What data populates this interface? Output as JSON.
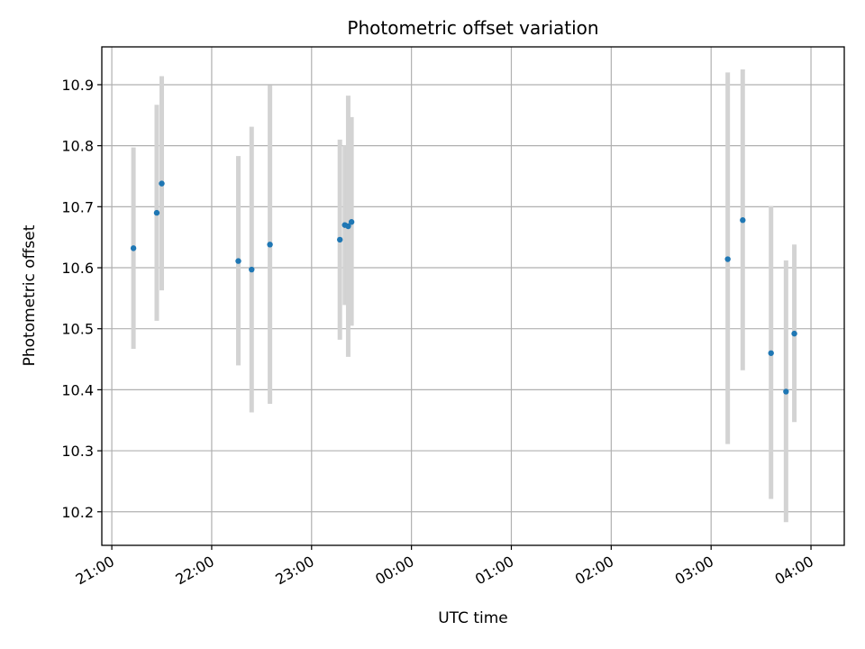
{
  "chart_data": {
    "type": "scatter",
    "title": "Photometric offset variation",
    "xlabel": "UTC time",
    "ylabel": "Photometric offset",
    "grid": true,
    "colors": {
      "points": "#1f77b4",
      "error_bars": "#d3d3d3"
    },
    "x_ticks": [
      {
        "label": "21:00",
        "t": "21:00"
      },
      {
        "label": "22:00",
        "t": "22:00"
      },
      {
        "label": "23:00",
        "t": "23:00"
      },
      {
        "label": "00:00",
        "t": "00:00"
      },
      {
        "label": "01:00",
        "t": "01:00"
      },
      {
        "label": "02:00",
        "t": "02:00"
      },
      {
        "label": "03:00",
        "t": "03:00"
      },
      {
        "label": "04:00",
        "t": "04:00"
      }
    ],
    "xlim": [
      "20:54",
      "04:20"
    ],
    "y_ticks": [
      "10.2",
      "10.3",
      "10.4",
      "10.5",
      "10.6",
      "10.7",
      "10.8",
      "10.9"
    ],
    "ylim": [
      10.145,
      10.962
    ],
    "points": [
      {
        "t": "21:13",
        "y": 10.632,
        "lo": 10.467,
        "hi": 10.797
      },
      {
        "t": "21:27",
        "y": 10.69,
        "lo": 10.513,
        "hi": 10.867
      },
      {
        "t": "21:30",
        "y": 10.738,
        "lo": 10.563,
        "hi": 10.914
      },
      {
        "t": "22:16",
        "y": 10.611,
        "lo": 10.44,
        "hi": 10.783
      },
      {
        "t": "22:24",
        "y": 10.597,
        "lo": 10.363,
        "hi": 10.831
      },
      {
        "t": "22:35",
        "y": 10.638,
        "lo": 10.377,
        "hi": 10.899
      },
      {
        "t": "23:17",
        "y": 10.646,
        "lo": 10.482,
        "hi": 10.81
      },
      {
        "t": "23:20",
        "y": 10.67,
        "lo": 10.539,
        "hi": 10.801
      },
      {
        "t": "23:22",
        "y": 10.668,
        "lo": 10.454,
        "hi": 10.882
      },
      {
        "t": "23:24",
        "y": 10.675,
        "lo": 10.505,
        "hi": 10.847
      },
      {
        "t": "03:10",
        "y": 10.614,
        "lo": 10.311,
        "hi": 10.92
      },
      {
        "t": "03:19",
        "y": 10.678,
        "lo": 10.432,
        "hi": 10.925
      },
      {
        "t": "03:36",
        "y": 10.46,
        "lo": 10.221,
        "hi": 10.701
      },
      {
        "t": "03:45",
        "y": 10.397,
        "lo": 10.183,
        "hi": 10.612
      },
      {
        "t": "03:50",
        "y": 10.492,
        "lo": 10.347,
        "hi": 10.638
      }
    ]
  }
}
